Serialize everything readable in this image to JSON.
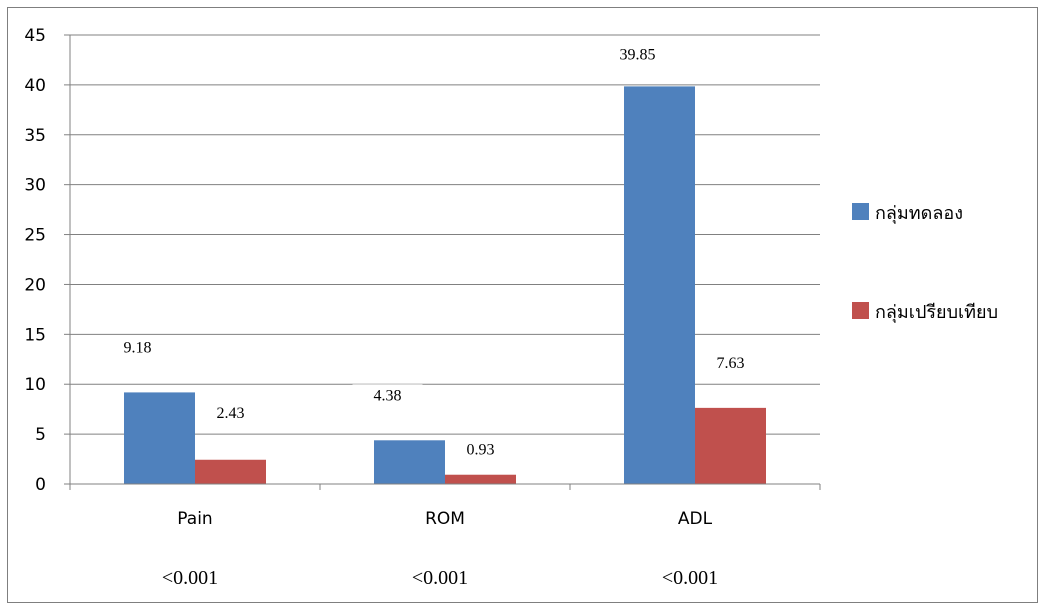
{
  "chart_data": {
    "type": "bar",
    "categories": [
      "Pain",
      "ROM",
      "ADL"
    ],
    "series": [
      {
        "name": "กลุ่มทดลอง",
        "values": [
          9.18,
          4.38,
          39.85
        ],
        "color": "#4f81bd"
      },
      {
        "name": "กลุ่มเปรียบเทียบ",
        "values": [
          2.43,
          0.93,
          7.63
        ],
        "color": "#c0504d"
      }
    ],
    "data_labels": [
      [
        "9.18",
        "4.38",
        "39.85"
      ],
      [
        "2.43",
        "0.93",
        "7.63"
      ]
    ],
    "p_values": [
      "<0.001",
      "<0.001",
      "<0.001"
    ],
    "yticks": [
      "0",
      "5",
      "10",
      "15",
      "20",
      "25",
      "30",
      "35",
      "40",
      "45"
    ],
    "ylim": [
      0,
      45
    ],
    "grid": true,
    "legend": "right",
    "title": "",
    "xlabel": "",
    "ylabel": ""
  }
}
